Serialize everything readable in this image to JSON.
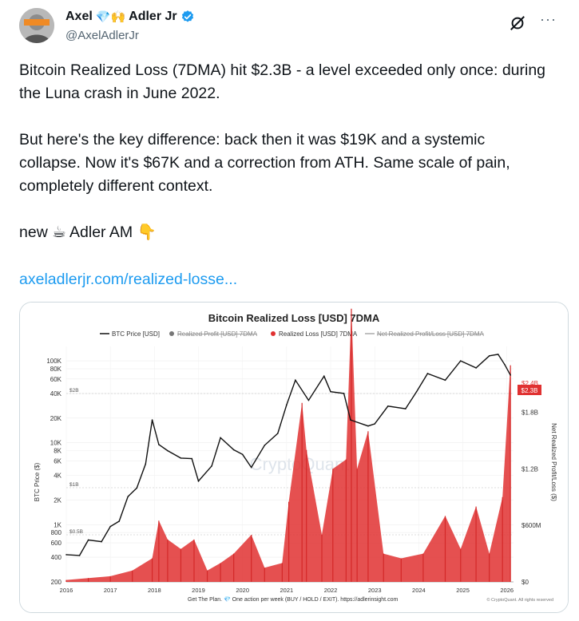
{
  "tweet": {
    "author": {
      "name_first": "Axel",
      "name_emoji": "💎🙌",
      "name_last": "Adler Jr",
      "handle": "@AxelAdlerJr"
    },
    "paragraphs": [
      "Bitcoin Realized Loss (7DMA) hit $2.3B - a level exceeded only once: during the Luna crash in June 2022.",
      "But here's the key difference: back then it was $19K and a systemic collapse. Now it's $67K and a correction from ATH. Same scale of pain, completely different context.",
      "new ☕ Adler AM 👇"
    ],
    "link": "axeladlerjr.com/realized-losse...",
    "more_label": "···"
  },
  "chart_data": {
    "type": "line",
    "title": "Bitcoin Realized Loss [USD] 7DMA",
    "legend": [
      {
        "name": "BTC Price [USD]",
        "color": "#111111",
        "enabled": true,
        "kind": "line"
      },
      {
        "name": "Realized Profit [USD] 7DMA",
        "color": "#777777",
        "enabled": false,
        "kind": "dot"
      },
      {
        "name": "Realized Loss [USD] 7DMA",
        "color": "#e03131",
        "enabled": true,
        "kind": "dot"
      },
      {
        "name": "Net Realized Profit/Loss [USD] 7DMA",
        "color": "#aaaaaa",
        "enabled": false,
        "kind": "line"
      }
    ],
    "legend_position": "top-center",
    "ylabel_left": "BTC Price ($)",
    "ylabel_right": "Net Realized Profit/Loss ($)",
    "y_left_ticks": [
      "100K",
      "80K",
      "60K",
      "40K",
      "20K",
      "10K",
      "8K",
      "6K",
      "4K",
      "2K",
      "1K",
      "800",
      "600",
      "400",
      "200"
    ],
    "y_left_ticks_values": [
      100000,
      80000,
      60000,
      40000,
      20000,
      10000,
      8000,
      6000,
      4000,
      2000,
      1000,
      800,
      600,
      400,
      200
    ],
    "y_left_scale": "log",
    "y_right_ticks": [
      "$0",
      "$600M",
      "$1.2B",
      "$1.8B"
    ],
    "y_right_ticks_values": [
      0,
      600000000,
      1200000000,
      1800000000
    ],
    "y_right_range": [
      0,
      2500000000
    ],
    "x_ticks": [
      "2016",
      "2017",
      "2018",
      "2019",
      "2020",
      "2021",
      "2022",
      "2023",
      "2024",
      "2025",
      "2026"
    ],
    "ref_lines": [
      {
        "label": "$2B",
        "value": 2000000000
      },
      {
        "label": "$1B",
        "value": 1000000000
      },
      {
        "label": "$0.5B",
        "value": 500000000
      }
    ],
    "current_badge": "$2.3B",
    "current_badge_partial": "$2.4B",
    "watermark": "CryptoQuant",
    "footer": "Get The Plan. 💎 One action per week (BUY / HOLD / EXIT). https://adlerinsight.com",
    "copyright": "© CryptoQuant. All rights reserved",
    "series": [
      {
        "name": "BTC Price [USD]",
        "points": [
          [
            2016.0,
            430
          ],
          [
            2016.3,
            420
          ],
          [
            2016.5,
            650
          ],
          [
            2016.8,
            620
          ],
          [
            2017.0,
            950
          ],
          [
            2017.2,
            1100
          ],
          [
            2017.4,
            2200
          ],
          [
            2017.6,
            2800
          ],
          [
            2017.8,
            5500
          ],
          [
            2017.95,
            19000
          ],
          [
            2018.1,
            9500
          ],
          [
            2018.3,
            8000
          ],
          [
            2018.6,
            6500
          ],
          [
            2018.85,
            6400
          ],
          [
            2019.0,
            3400
          ],
          [
            2019.3,
            5200
          ],
          [
            2019.5,
            11500
          ],
          [
            2019.8,
            8200
          ],
          [
            2020.0,
            7200
          ],
          [
            2020.2,
            5000
          ],
          [
            2020.5,
            9300
          ],
          [
            2020.8,
            13000
          ],
          [
            2021.0,
            29000
          ],
          [
            2021.2,
            58000
          ],
          [
            2021.5,
            33000
          ],
          [
            2021.85,
            65000
          ],
          [
            2022.0,
            42000
          ],
          [
            2022.3,
            40000
          ],
          [
            2022.45,
            19000
          ],
          [
            2022.85,
            16000
          ],
          [
            2023.0,
            17000
          ],
          [
            2023.3,
            28000
          ],
          [
            2023.7,
            26000
          ],
          [
            2023.95,
            42000
          ],
          [
            2024.2,
            70000
          ],
          [
            2024.6,
            58000
          ],
          [
            2024.95,
            100000
          ],
          [
            2025.3,
            82000
          ],
          [
            2025.6,
            115000
          ],
          [
            2025.8,
            120000
          ],
          [
            2025.95,
            90000
          ],
          [
            2026.08,
            67000
          ]
        ]
      },
      {
        "name": "Realized Loss [USD] 7DMA",
        "points": [
          [
            2016.0,
            20000000
          ],
          [
            2016.5,
            40000000
          ],
          [
            2017.0,
            60000000
          ],
          [
            2017.5,
            120000000
          ],
          [
            2017.95,
            250000000
          ],
          [
            2018.1,
            650000000
          ],
          [
            2018.3,
            450000000
          ],
          [
            2018.6,
            350000000
          ],
          [
            2018.9,
            450000000
          ],
          [
            2019.2,
            120000000
          ],
          [
            2019.5,
            200000000
          ],
          [
            2019.8,
            300000000
          ],
          [
            2020.2,
            500000000
          ],
          [
            2020.5,
            150000000
          ],
          [
            2020.9,
            200000000
          ],
          [
            2021.05,
            850000000
          ],
          [
            2021.35,
            1900000000
          ],
          [
            2021.45,
            1400000000
          ],
          [
            2021.8,
            500000000
          ],
          [
            2022.05,
            1200000000
          ],
          [
            2022.35,
            1300000000
          ],
          [
            2022.47,
            2900000000
          ],
          [
            2022.6,
            1200000000
          ],
          [
            2022.85,
            1600000000
          ],
          [
            2023.2,
            300000000
          ],
          [
            2023.6,
            250000000
          ],
          [
            2024.1,
            300000000
          ],
          [
            2024.6,
            700000000
          ],
          [
            2024.95,
            350000000
          ],
          [
            2025.3,
            800000000
          ],
          [
            2025.6,
            300000000
          ],
          [
            2025.9,
            900000000
          ],
          [
            2026.08,
            2300000000
          ]
        ]
      }
    ]
  }
}
